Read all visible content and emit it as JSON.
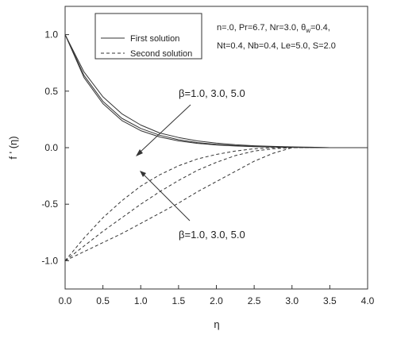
{
  "chart_data": {
    "type": "line",
    "title": "",
    "xlabel": "η",
    "ylabel": "f ' (η)",
    "xlim": [
      0.0,
      4.0
    ],
    "ylim": [
      -1.25,
      1.25
    ],
    "xticks": [
      "0.0",
      "0.5",
      "1.0",
      "1.5",
      "2.0",
      "2.5",
      "3.0",
      "3.5",
      "4.0"
    ],
    "yticks": [
      "1.0",
      "0.5",
      "0.0",
      "-0.5",
      "-1.0"
    ],
    "grid": false,
    "legend": {
      "position": "top-left",
      "entries": [
        {
          "label": "First solution",
          "style": "solid"
        },
        {
          "label": "Second solution",
          "style": "dashed"
        }
      ]
    },
    "parameters": {
      "line1": "n=.0, Pr=6.7, Nr=3.0, θ",
      "line1_sub": "w",
      "line1_tail": "=0.4,",
      "line2": "Nt=0.4, Nb=0.4, Le=5.0, S=2.0"
    },
    "annotations": [
      {
        "text": "β=1.0, 3.0, 5.0",
        "group": "first"
      },
      {
        "text": "β=1.0, 3.0, 5.0",
        "group": "second"
      }
    ],
    "x": [
      0.0,
      0.25,
      0.5,
      0.75,
      1.0,
      1.25,
      1.5,
      1.75,
      2.0,
      2.25,
      2.5,
      2.75,
      3.0,
      3.25,
      3.5,
      3.75,
      4.0
    ],
    "series": [
      {
        "style": "solid",
        "values": [
          1.0,
          0.67,
          0.45,
          0.3,
          0.2,
          0.13,
          0.09,
          0.06,
          0.04,
          0.026,
          0.017,
          0.011,
          0.007,
          0.004,
          0.0,
          0.0,
          0.0
        ]
      },
      {
        "style": "solid",
        "values": [
          1.0,
          0.64,
          0.41,
          0.26,
          0.17,
          0.11,
          0.07,
          0.045,
          0.029,
          0.018,
          0.011,
          0.007,
          0.004,
          0.002,
          0.0,
          0.0,
          0.0
        ]
      },
      {
        "style": "solid",
        "values": [
          1.0,
          0.62,
          0.39,
          0.24,
          0.15,
          0.095,
          0.06,
          0.038,
          0.024,
          0.015,
          0.009,
          0.005,
          0.003,
          0.001,
          0.0,
          0.0,
          0.0
        ]
      },
      {
        "style": "dashed",
        "values": [
          -1.0,
          -0.8,
          -0.62,
          -0.47,
          -0.34,
          -0.24,
          -0.16,
          -0.1,
          -0.06,
          -0.03,
          -0.01,
          0.0,
          0.0,
          0.0,
          0.0,
          0.0,
          0.0
        ]
      },
      {
        "style": "dashed",
        "values": [
          -1.0,
          -0.87,
          -0.74,
          -0.62,
          -0.5,
          -0.39,
          -0.29,
          -0.2,
          -0.13,
          -0.07,
          -0.03,
          -0.01,
          0.0,
          0.0,
          0.0,
          0.0,
          0.0
        ]
      },
      {
        "style": "dashed",
        "values": [
          -1.0,
          -0.92,
          -0.84,
          -0.76,
          -0.67,
          -0.58,
          -0.49,
          -0.39,
          -0.3,
          -0.21,
          -0.12,
          -0.05,
          0.0,
          0.0,
          0.0,
          0.0,
          0.0
        ]
      }
    ]
  }
}
